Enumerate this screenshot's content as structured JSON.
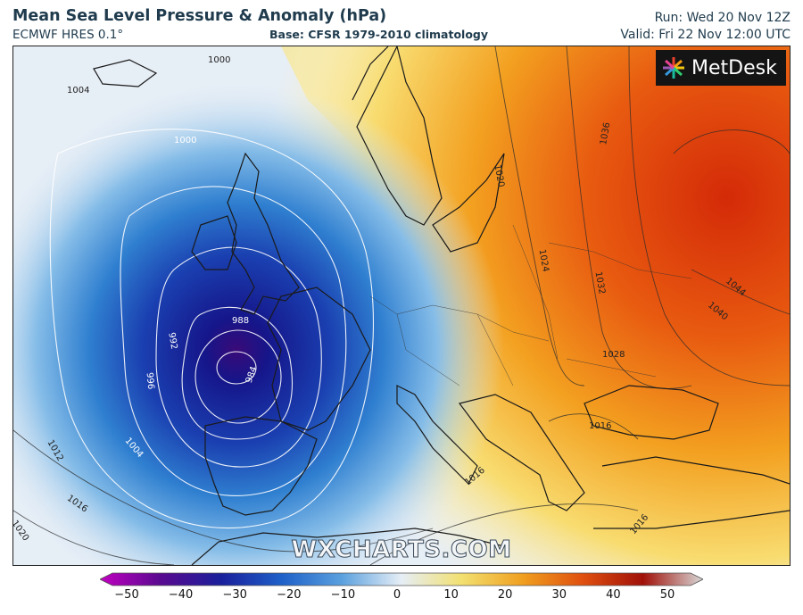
{
  "header": {
    "title": "Mean Sea Level Pressure & Anomaly (hPa)",
    "model": "ECMWF HRES 0.1°",
    "base": "Base: CFSR 1979-2010 climatology",
    "run": "Run: Wed 20 Nov 12Z",
    "valid": "Valid: Fri 22 Nov 12:00 UTC"
  },
  "logo": {
    "text": "MetDesk",
    "icon": "starburst-logo-icon"
  },
  "watermark": "WXCHARTS.COM",
  "isobars": {
    "labels": [
      "1000",
      "1004",
      "1000",
      "988",
      "992",
      "996",
      "984",
      "1012",
      "1004",
      "1016",
      "1020",
      "1020",
      "1024",
      "1032",
      "1036",
      "1044",
      "1040",
      "1028",
      "1016",
      "1016",
      "1016"
    ]
  },
  "colorbar": {
    "ticks": [
      "−50",
      "−40",
      "−30",
      "−20",
      "−10",
      "0",
      "10",
      "20",
      "30",
      "40",
      "50"
    ],
    "colors": [
      "#c000c0",
      "#5a0a90",
      "#1a1f9a",
      "#1e5fc8",
      "#5aa0de",
      "#e6eef6",
      "#f2e070",
      "#f0a020",
      "#e05010",
      "#a01008",
      "#d8d8d8"
    ]
  }
}
